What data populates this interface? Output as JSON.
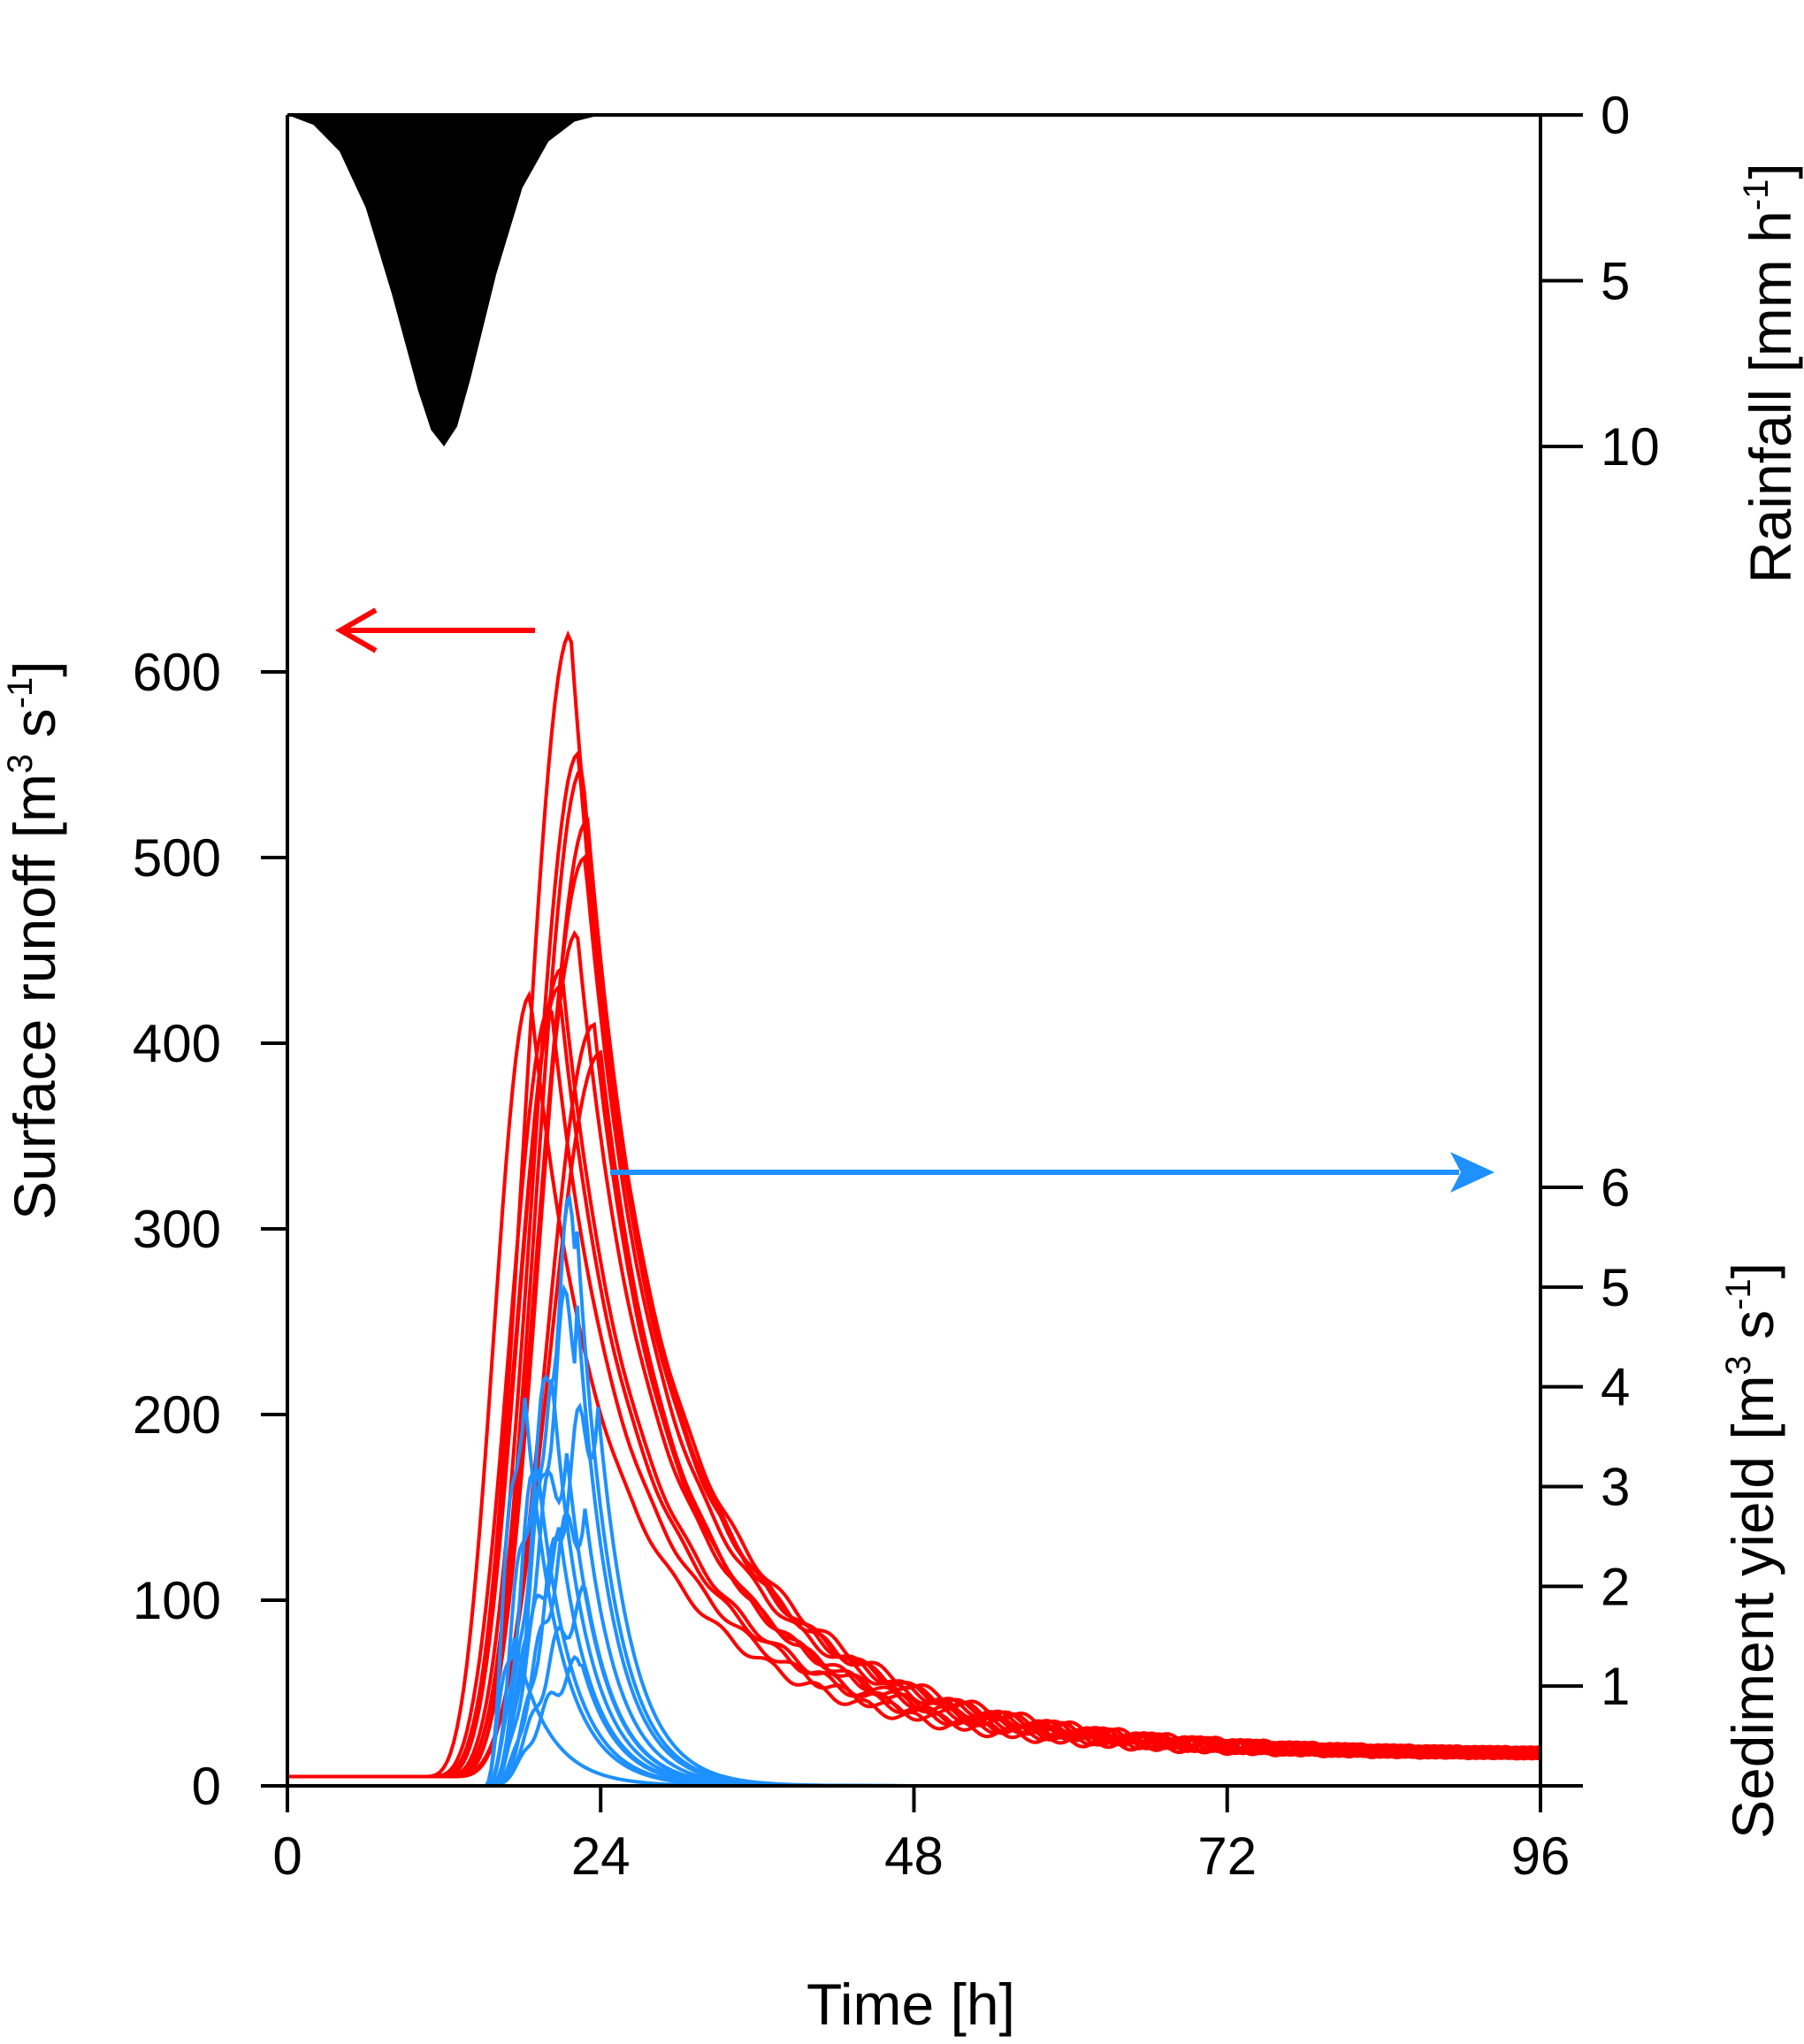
{
  "chart_data": {
    "type": "line",
    "x_axis": {
      "label": "Time [h]",
      "ticks": [
        0,
        24,
        48,
        72,
        96
      ],
      "range": [
        0,
        96
      ]
    },
    "left_axis": {
      "label_main": "Surface runoff [m",
      "label_sup1": "3",
      "label_mid": " s",
      "label_sup2": "-1",
      "label_end": "]",
      "ticks": [
        0,
        100,
        200,
        300,
        400,
        500,
        600
      ],
      "range": [
        0,
        600
      ]
    },
    "rain_axis": {
      "label_main": "Rainfall [mm h",
      "label_sup": "-1",
      "label_end": "]",
      "ticks": [
        0,
        5,
        10
      ],
      "inverted": true
    },
    "sediment_axis": {
      "label_main": "Sediment yield [m",
      "label_sup1": "3",
      "label_mid": " s",
      "label_sup2": "-1",
      "label_end": "]",
      "ticks": [
        1,
        2,
        3,
        4,
        5,
        6
      ]
    },
    "rainfall": {
      "color": "#000000",
      "peak_time": 12,
      "peak_value": 10,
      "start": 0,
      "end": 24,
      "points": [
        [
          0,
          0
        ],
        [
          2,
          0.3
        ],
        [
          4,
          1.1
        ],
        [
          6,
          2.8
        ],
        [
          8,
          5.4
        ],
        [
          10,
          8.3
        ],
        [
          11,
          9.5
        ],
        [
          12,
          10
        ],
        [
          13,
          9.4
        ],
        [
          14,
          8.0
        ],
        [
          16,
          4.8
        ],
        [
          18,
          2.2
        ],
        [
          20,
          0.8
        ],
        [
          22,
          0.2
        ],
        [
          24,
          0
        ]
      ]
    },
    "runoff_series": {
      "color": "#ff0000",
      "members": [
        {
          "peak_time": 21.7,
          "peak": 621,
          "rise_start": 14.0
        },
        {
          "peak_time": 22.3,
          "peak": 556,
          "rise_start": 14.5
        },
        {
          "peak_time": 22.6,
          "peak": 548,
          "rise_start": 14.8
        },
        {
          "peak_time": 23.0,
          "peak": 520,
          "rise_start": 15.0
        },
        {
          "peak_time": 22.8,
          "peak": 500,
          "rise_start": 14.6
        },
        {
          "peak_time": 22.2,
          "peak": 460,
          "rise_start": 15.2
        },
        {
          "peak_time": 21.0,
          "peak": 440,
          "rise_start": 13.8
        },
        {
          "peak_time": 20.8,
          "peak": 430,
          "rise_start": 14.2
        },
        {
          "peak_time": 18.6,
          "peak": 426,
          "rise_start": 13.2
        },
        {
          "peak_time": 23.5,
          "peak": 410,
          "rise_start": 15.4
        },
        {
          "peak_time": 24.0,
          "peak": 395,
          "rise_start": 15.0
        },
        {
          "peak_time": 20.2,
          "peak": 420,
          "rise_start": 13.6
        }
      ],
      "base_flow": 5,
      "end_value": 17
    },
    "sediment_series": {
      "color": "#1e90ff",
      "members": [
        {
          "peak_time": 22.0,
          "peak": 6.0,
          "rise_start": 15.6
        },
        {
          "peak_time": 22.0,
          "peak": 5.2,
          "rise_start": 15.8
        },
        {
          "peak_time": 18.0,
          "peak": 4.2,
          "rise_start": 15.2
        },
        {
          "peak_time": 20.2,
          "peak": 4.2,
          "rise_start": 15.4
        },
        {
          "peak_time": 23.6,
          "peak": 4.1,
          "rise_start": 16.0
        },
        {
          "peak_time": 21.2,
          "peak": 3.6,
          "rise_start": 15.6
        },
        {
          "peak_time": 19.0,
          "peak": 3.4,
          "rise_start": 15.4
        },
        {
          "peak_time": 22.6,
          "peak": 3.0,
          "rise_start": 15.8
        },
        {
          "peak_time": 20.8,
          "peak": 2.6,
          "rise_start": 15.6
        },
        {
          "peak_time": 22.8,
          "peak": 2.0,
          "rise_start": 15.8
        },
        {
          "peak_time": 17.2,
          "peak": 1.6,
          "rise_start": 15.2
        },
        {
          "peak_time": 22.4,
          "peak": 1.3,
          "rise_start": 15.8
        }
      ]
    },
    "annotations": {
      "red_arrow": "points left to Surface runoff axis",
      "blue_arrow": "points right to Sediment yield axis"
    },
    "grid": false,
    "legend": "none"
  }
}
